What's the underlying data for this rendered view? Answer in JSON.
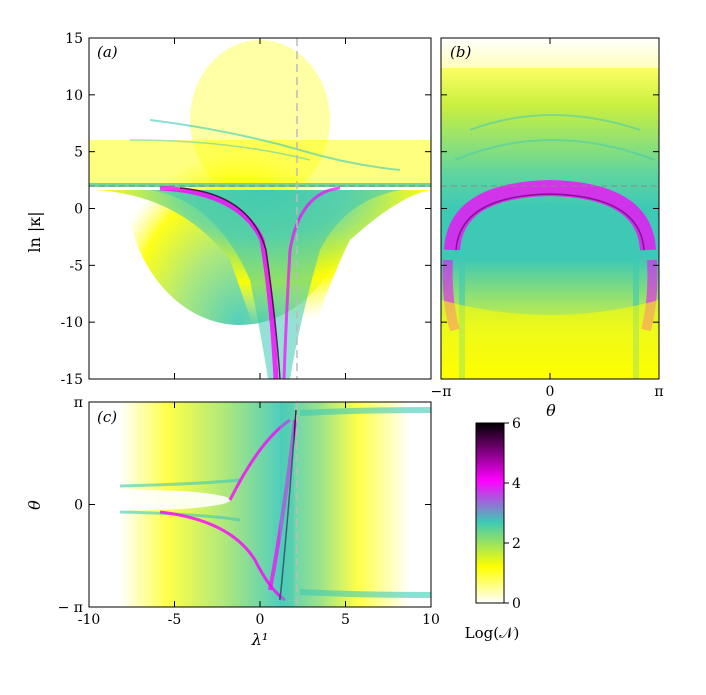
{
  "panels": {
    "a": {
      "label": "(a)"
    },
    "b": {
      "label": "(b)"
    },
    "c": {
      "label": "(c)"
    }
  },
  "axes": {
    "y_top_label": "ln |κ|",
    "x_bottom_label": "λ¹",
    "theta_label": "θ",
    "b_x_label": "θ",
    "c_y_label": "θ"
  },
  "colorbar": {
    "label": "Log(𝒩)",
    "ticks": [
      "0",
      "2",
      "4",
      "6"
    ],
    "range": [
      0,
      6
    ],
    "stops": [
      "#ffffff",
      "#ffff00",
      "#33ccaa",
      "#ff00ff",
      "#000000"
    ]
  },
  "chart_data": [
    {
      "panel": "a",
      "type": "heatmap",
      "title": "",
      "xlabel": "",
      "ylabel": "ln |κ|",
      "xlim": [
        -10,
        10
      ],
      "ylim": [
        -15,
        15
      ],
      "x_ticks": [
        "-10",
        "-5",
        "0",
        "5",
        "10"
      ],
      "y_ticks": [
        "-15",
        "-10",
        "-5",
        "0",
        "5",
        "10",
        "15"
      ],
      "reference_lines": {
        "vertical_dashed_x": 2.0,
        "horizontal_dashed_y": 1.7
      }
    },
    {
      "panel": "b",
      "type": "heatmap",
      "title": "",
      "xlabel": "θ",
      "ylabel": "",
      "xlim": [
        "−π",
        "π"
      ],
      "ylim": [
        -15,
        15
      ],
      "x_ticks": [
        "−π",
        "0",
        "π"
      ],
      "reference_lines": {
        "horizontal_dashed_y": 1.7
      }
    },
    {
      "panel": "c",
      "type": "heatmap",
      "title": "",
      "xlabel": "λ¹",
      "ylabel": "θ",
      "xlim": [
        -10,
        10
      ],
      "ylim": [
        "−π",
        "π"
      ],
      "x_ticks": [
        "-10",
        "-5",
        "0",
        "5",
        "10"
      ],
      "y_ticks": [
        "π",
        "0",
        "− π"
      ],
      "reference_lines": {
        "vertical_dashed_x": 2.0
      }
    }
  ]
}
